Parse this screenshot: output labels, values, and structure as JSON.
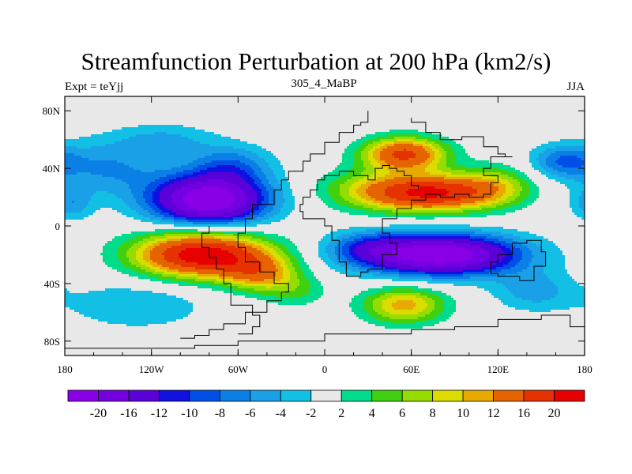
{
  "chart_data": {
    "type": "contour-map",
    "title": "Streamfunction Perturbation at 200 hPa (km2/s)",
    "left_string": "Expt = teYjj",
    "center_string": "305_4_MaBP",
    "right_string": "JJA",
    "x_ticks": [
      {
        "value": -180,
        "label": "180"
      },
      {
        "value": -120,
        "label": "120W"
      },
      {
        "value": -60,
        "label": "60W"
      },
      {
        "value": 0,
        "label": "0"
      },
      {
        "value": 60,
        "label": "60E"
      },
      {
        "value": 120,
        "label": "120E"
      },
      {
        "value": 180,
        "label": "180"
      }
    ],
    "y_ticks": [
      {
        "value": 80,
        "label": "80N"
      },
      {
        "value": 40,
        "label": "40N"
      },
      {
        "value": 0,
        "label": "0"
      },
      {
        "value": -40,
        "label": "40S"
      },
      {
        "value": -80,
        "label": "80S"
      }
    ],
    "xlim": [
      -180,
      180
    ],
    "ylim": [
      -90,
      90
    ],
    "colorbar": {
      "colors": [
        "#8a00e6",
        "#7200e0",
        "#5a00d8",
        "#1010e0",
        "#0050e8",
        "#0a7fe6",
        "#1aa0e6",
        "#12c0e6",
        "#e8e8e8",
        "#00dc8c",
        "#40d010",
        "#96dc00",
        "#dcdc00",
        "#e6aa00",
        "#e66400",
        "#e63200",
        "#e60000"
      ],
      "labels": [
        "-20",
        "-16",
        "-12",
        "-10",
        "-8",
        "-6",
        "-4",
        "-2",
        "2",
        "4",
        "6",
        "8",
        "10",
        "12",
        "16",
        "20"
      ]
    },
    "anomalies": [
      {
        "lon": -80,
        "lat": 18,
        "amp": -24,
        "sx": 28,
        "sy": 12
      },
      {
        "lon": -65,
        "lat": 42,
        "amp": -7,
        "sx": 20,
        "sy": 10
      },
      {
        "lon": -150,
        "lat": 40,
        "amp": -6,
        "sx": 30,
        "sy": 14
      },
      {
        "lon": -175,
        "lat": 15,
        "amp": -5,
        "sx": 10,
        "sy": 8
      },
      {
        "lon": 80,
        "lat": -20,
        "amp": -24,
        "sx": 38,
        "sy": 10
      },
      {
        "lon": 30,
        "lat": -15,
        "amp": -6,
        "sx": 20,
        "sy": 8
      },
      {
        "lon": 165,
        "lat": 45,
        "amp": -7,
        "sx": 16,
        "sy": 8
      },
      {
        "lon": 145,
        "lat": -45,
        "amp": -5,
        "sx": 20,
        "sy": 10
      },
      {
        "lon": -130,
        "lat": -55,
        "amp": -4,
        "sx": 35,
        "sy": 12
      },
      {
        "lon": -85,
        "lat": -20,
        "amp": 23,
        "sx": 32,
        "sy": 11
      },
      {
        "lon": -45,
        "lat": -33,
        "amp": 10,
        "sx": 18,
        "sy": 9
      },
      {
        "lon": -20,
        "lat": -45,
        "amp": 4,
        "sx": 15,
        "sy": 8
      },
      {
        "lon": 75,
        "lat": 23,
        "amp": 20,
        "sx": 30,
        "sy": 9
      },
      {
        "lon": 55,
        "lat": 50,
        "amp": 17,
        "sx": 20,
        "sy": 8
      },
      {
        "lon": 30,
        "lat": 25,
        "amp": 6,
        "sx": 25,
        "sy": 10
      },
      {
        "lon": 120,
        "lat": 28,
        "amp": 6,
        "sx": 18,
        "sy": 10
      },
      {
        "lon": 55,
        "lat": -55,
        "amp": 11,
        "sx": 20,
        "sy": 9
      },
      {
        "lon": -110,
        "lat": 60,
        "amp": -4,
        "sx": 25,
        "sy": 8
      }
    ],
    "coastlines": [
      [
        [
          -100,
          -78
        ],
        [
          -90,
          -76
        ],
        [
          -80,
          -72
        ],
        [
          -70,
          -68
        ],
        [
          -55,
          -60
        ],
        [
          -40,
          -52
        ],
        [
          -30,
          -46
        ],
        [
          -25,
          -40
        ],
        [
          -35,
          -32
        ],
        [
          -45,
          -25
        ],
        [
          -55,
          -15
        ],
        [
          -60,
          -5
        ],
        [
          -55,
          5
        ],
        [
          -50,
          15
        ],
        [
          -35,
          25
        ],
        [
          -30,
          32
        ],
        [
          -25,
          38
        ],
        [
          -15,
          45
        ],
        [
          -10,
          50
        ],
        [
          0,
          58
        ],
        [
          10,
          65
        ],
        [
          20,
          70
        ],
        [
          25,
          72
        ],
        [
          30,
          80
        ]
      ],
      [
        [
          -60,
          -75
        ],
        [
          -50,
          -70
        ],
        [
          -45,
          -62
        ],
        [
          -50,
          -55
        ],
        [
          -65,
          -40
        ],
        [
          -70,
          -30
        ],
        [
          -75,
          -22
        ],
        [
          -80,
          -15
        ],
        [
          -85,
          -5
        ],
        [
          -80,
          0
        ]
      ],
      [
        [
          20,
          -35
        ],
        [
          25,
          -32
        ],
        [
          30,
          -30
        ],
        [
          40,
          -20
        ],
        [
          50,
          -12
        ],
        [
          45,
          -5
        ],
        [
          40,
          5
        ],
        [
          50,
          12
        ],
        [
          60,
          18
        ],
        [
          70,
          22
        ],
        [
          80,
          20
        ],
        [
          90,
          22
        ],
        [
          100,
          20
        ],
        [
          110,
          22
        ],
        [
          115,
          30
        ],
        [
          120,
          35
        ],
        [
          110,
          40
        ],
        [
          115,
          48
        ],
        [
          130,
          48
        ],
        [
          125,
          50
        ],
        [
          120,
          55
        ],
        [
          110,
          62
        ],
        [
          95,
          60
        ],
        [
          80,
          65
        ],
        [
          70,
          72
        ],
        [
          60,
          75
        ]
      ],
      [
        [
          20,
          -35
        ],
        [
          15,
          -25
        ],
        [
          10,
          -10
        ],
        [
          5,
          0
        ],
        [
          0,
          5
        ],
        [
          -10,
          5
        ],
        [
          -15,
          10
        ],
        [
          -17,
          15
        ],
        [
          -15,
          20
        ],
        [
          -10,
          25
        ],
        [
          -5,
          32
        ],
        [
          0,
          35
        ],
        [
          10,
          38
        ],
        [
          20,
          35
        ],
        [
          30,
          32
        ],
        [
          35,
          40
        ],
        [
          40,
          42
        ],
        [
          45,
          40
        ],
        [
          50,
          38
        ],
        [
          55,
          35
        ],
        [
          60,
          28
        ],
        [
          65,
          25
        ]
      ],
      [
        [
          -180,
          -85
        ],
        [
          -120,
          -85
        ],
        [
          -90,
          -83
        ],
        [
          -60,
          -80
        ],
        [
          0,
          -75
        ],
        [
          40,
          -75
        ],
        [
          60,
          -72
        ],
        [
          90,
          -70
        ],
        [
          120,
          -65
        ],
        [
          150,
          -62
        ],
        [
          170,
          -70
        ],
        [
          180,
          -85
        ]
      ],
      [
        [
          120,
          -20
        ],
        [
          130,
          -12
        ],
        [
          140,
          -10
        ],
        [
          150,
          -18
        ],
        [
          153,
          -28
        ],
        [
          145,
          -38
        ],
        [
          135,
          -35
        ],
        [
          120,
          -33
        ],
        [
          115,
          -25
        ],
        [
          120,
          -20
        ]
      ]
    ]
  }
}
